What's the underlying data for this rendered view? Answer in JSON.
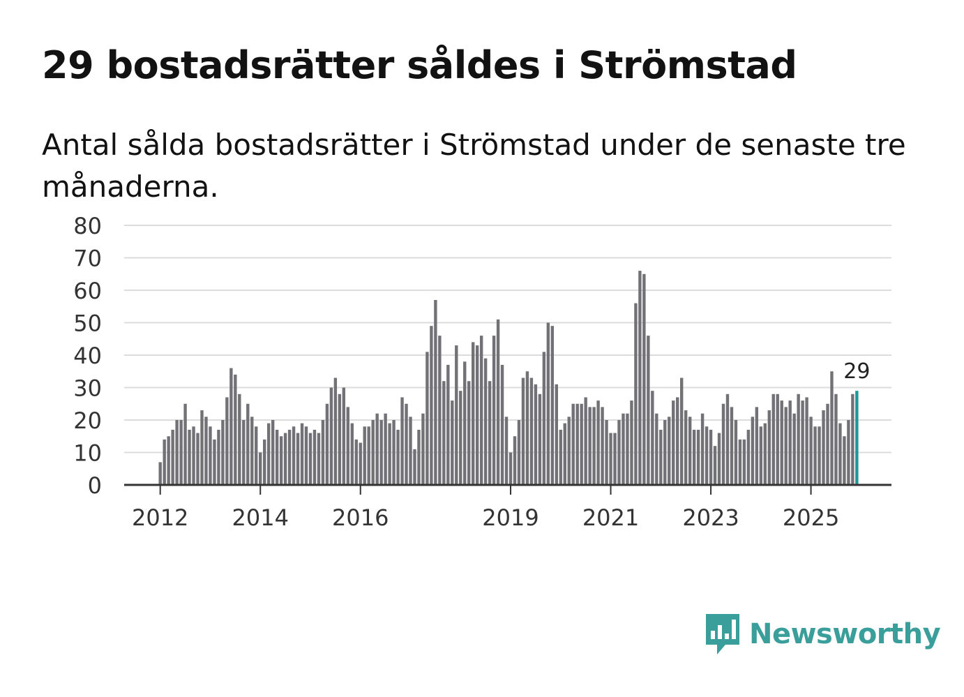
{
  "title": "29 bostadsrätter såldes i Strömstad",
  "subtitle": "Antal sålda bostadsrätter i Strömstad under de senaste tre månaderna.",
  "brand": {
    "name": "Newsworthy",
    "color": "#3a9f9a"
  },
  "colors": {
    "bar": "#727176",
    "highlight": "#1a9a96",
    "grid": "#dcdcdc",
    "axis": "#333333"
  },
  "chart_data": {
    "type": "bar",
    "title": "Antal sålda bostadsrätter i Strömstad",
    "xlabel": "",
    "ylabel": "",
    "ylim": [
      0,
      80
    ],
    "yticks": [
      "0",
      "10",
      "20",
      "30",
      "40",
      "50",
      "60",
      "70",
      "80"
    ],
    "xticks": [
      {
        "label": "2012",
        "index": 0
      },
      {
        "label": "2014",
        "index": 24
      },
      {
        "label": "2016",
        "index": 48
      },
      {
        "label": "2019",
        "index": 84
      },
      {
        "label": "2021",
        "index": 108
      },
      {
        "label": "2023",
        "index": 132
      },
      {
        "label": "2025",
        "index": 156
      }
    ],
    "start_month": "2012-01",
    "highlight_label": "29",
    "values": [
      7,
      14,
      15,
      17,
      20,
      20,
      25,
      17,
      18,
      16,
      23,
      21,
      18,
      14,
      17,
      20,
      27,
      36,
      34,
      28,
      20,
      25,
      21,
      18,
      10,
      14,
      19,
      20,
      17,
      15,
      16,
      17,
      18,
      16,
      19,
      18,
      16,
      17,
      16,
      20,
      25,
      30,
      33,
      28,
      30,
      24,
      19,
      14,
      13,
      18,
      18,
      20,
      22,
      20,
      22,
      19,
      20,
      17,
      27,
      25,
      21,
      11,
      17,
      22,
      41,
      49,
      57,
      46,
      32,
      37,
      26,
      43,
      29,
      38,
      32,
      44,
      43,
      46,
      39,
      32,
      46,
      51,
      37,
      21,
      10,
      15,
      20,
      33,
      35,
      33,
      31,
      28,
      41,
      50,
      49,
      31,
      17,
      19,
      21,
      25,
      25,
      25,
      27,
      24,
      24,
      26,
      24,
      20,
      16,
      16,
      20,
      22,
      22,
      26,
      56,
      66,
      65,
      46,
      29,
      22,
      17,
      20,
      21,
      26,
      27,
      33,
      23,
      21,
      17,
      17,
      22,
      18,
      17,
      12,
      16,
      25,
      28,
      24,
      20,
      14,
      14,
      17,
      21,
      24,
      18,
      19,
      23,
      28,
      28,
      26,
      24,
      26,
      22,
      28,
      26,
      27,
      21,
      18,
      18,
      23,
      25,
      35,
      28,
      19,
      15,
      20,
      28,
      29
    ]
  }
}
